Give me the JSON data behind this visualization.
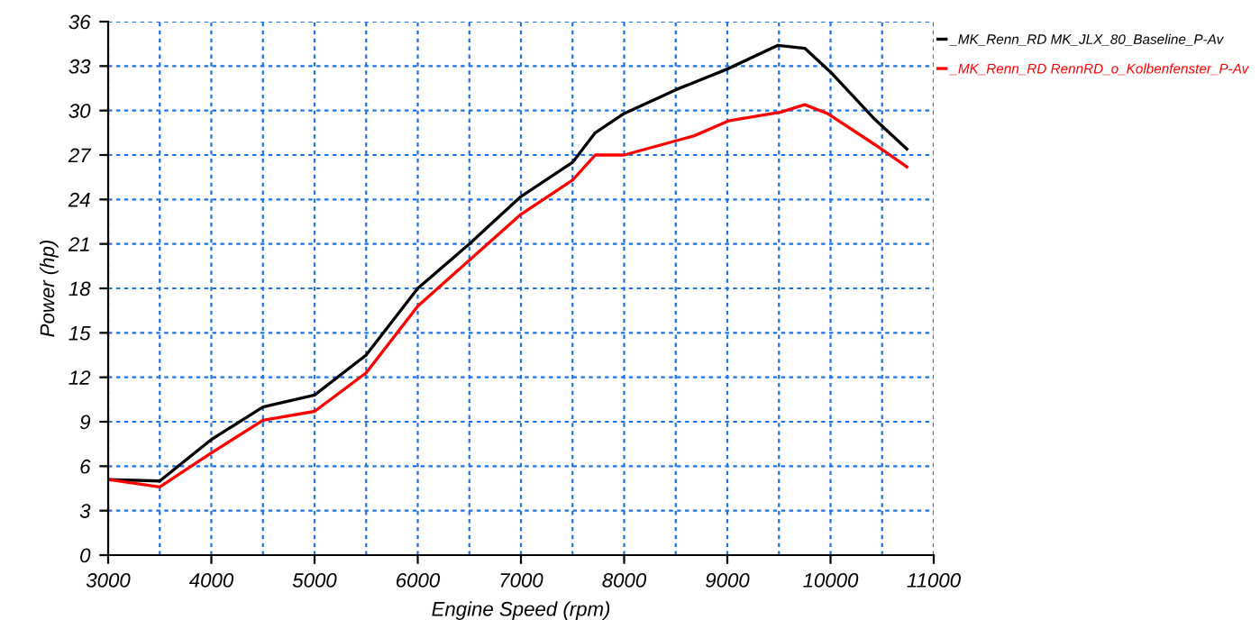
{
  "chart_data": {
    "type": "line",
    "xlabel": "Engine Speed (rpm)",
    "ylabel": "Power (hp)",
    "xlim": [
      3000,
      11000
    ],
    "xticks": [
      3000,
      4000,
      5000,
      6000,
      7000,
      8000,
      9000,
      10000,
      11000
    ],
    "ylim": [
      0,
      36
    ],
    "yticks": [
      0,
      3,
      6,
      9,
      12,
      15,
      18,
      21,
      24,
      27,
      30,
      33,
      36
    ],
    "grid": true,
    "legend": "top right",
    "line_style": "solid",
    "marker": "none",
    "series": [
      {
        "name": "_MK_Renn_RD MK_JLX_80_Baseline_P-Av",
        "color": "#000000",
        "x": [
          3000,
          3500,
          4000,
          4500,
          5000,
          5500,
          6000,
          6500,
          7000,
          7500,
          7720,
          8000,
          8500,
          9000,
          9490,
          9750,
          10000,
          10430,
          10740
        ],
        "values": [
          5.1,
          5.0,
          7.8,
          10.0,
          10.8,
          13.5,
          18.0,
          21.0,
          24.2,
          26.5,
          28.5,
          29.8,
          31.4,
          32.8,
          34.4,
          34.2,
          32.6,
          29.4,
          27.4
        ]
      },
      {
        "name": "_MK_Renn_RD RennRD_o_Kolbenfenster_P-Av",
        "color": "#ff0000",
        "x": [
          3000,
          3500,
          4000,
          4500,
          5000,
          5500,
          6000,
          6500,
          7000,
          7500,
          7720,
          8000,
          8680,
          9010,
          9520,
          9750,
          9970,
          10430,
          10740
        ],
        "values": [
          5.1,
          4.6,
          6.9,
          9.1,
          9.7,
          12.3,
          16.8,
          19.9,
          23.0,
          25.3,
          27.0,
          27.0,
          28.3,
          29.3,
          29.9,
          30.4,
          29.8,
          27.7,
          26.2
        ]
      }
    ]
  }
}
